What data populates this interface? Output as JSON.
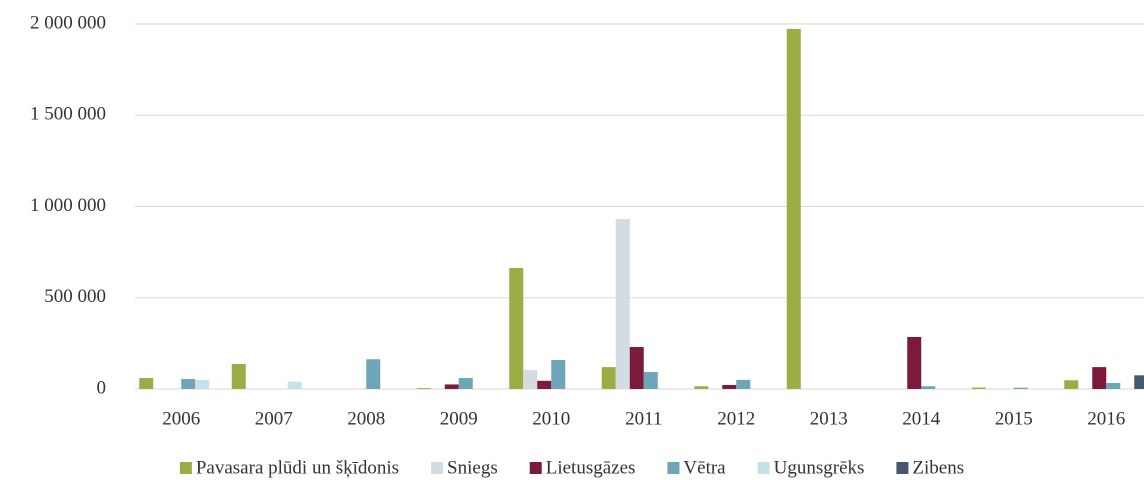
{
  "chart_data": {
    "type": "bar",
    "categories": [
      "2006",
      "2007",
      "2008",
      "2009",
      "2010",
      "2011",
      "2012",
      "2013",
      "2014",
      "2015",
      "2016"
    ],
    "series": [
      {
        "name": "Pavasara plūdi un šķīdonis",
        "color": "#9bad45",
        "values": [
          60000,
          137000,
          0,
          5000,
          663000,
          120000,
          15000,
          1973000,
          0,
          8000,
          48000
        ]
      },
      {
        "name": "Sniegs",
        "color": "#d3dce3",
        "values": [
          0,
          0,
          0,
          0,
          104000,
          932000,
          0,
          0,
          0,
          0,
          0
        ]
      },
      {
        "name": "Lietusgāzes",
        "color": "#7b1a3b",
        "values": [
          0,
          0,
          0,
          25000,
          45000,
          230000,
          22000,
          0,
          285000,
          0,
          120000
        ]
      },
      {
        "name": "Vētra",
        "color": "#6ea5b8",
        "values": [
          55000,
          0,
          163000,
          60000,
          159000,
          93000,
          50000,
          0,
          15000,
          7000,
          33000
        ]
      },
      {
        "name": "Ugunsgrēks",
        "color": "#c5e1e8",
        "values": [
          50000,
          40000,
          0,
          0,
          0,
          0,
          0,
          0,
          0,
          0,
          0
        ]
      },
      {
        "name": "Zibens",
        "color": "#44596b",
        "values": [
          0,
          0,
          0,
          0,
          0,
          0,
          0,
          0,
          0,
          0,
          75000
        ]
      }
    ],
    "ylim": [
      0,
      2000000
    ],
    "yticks": [
      0,
      {
        "value": 500000,
        "label": "500 000"
      },
      {
        "value": 1000000,
        "label": "1 000 000"
      },
      {
        "value": 1500000,
        "label": "1 500 000"
      },
      {
        "value": 2000000,
        "label": "2 000 000"
      }
    ],
    "grid": true,
    "legend": "bottom"
  }
}
